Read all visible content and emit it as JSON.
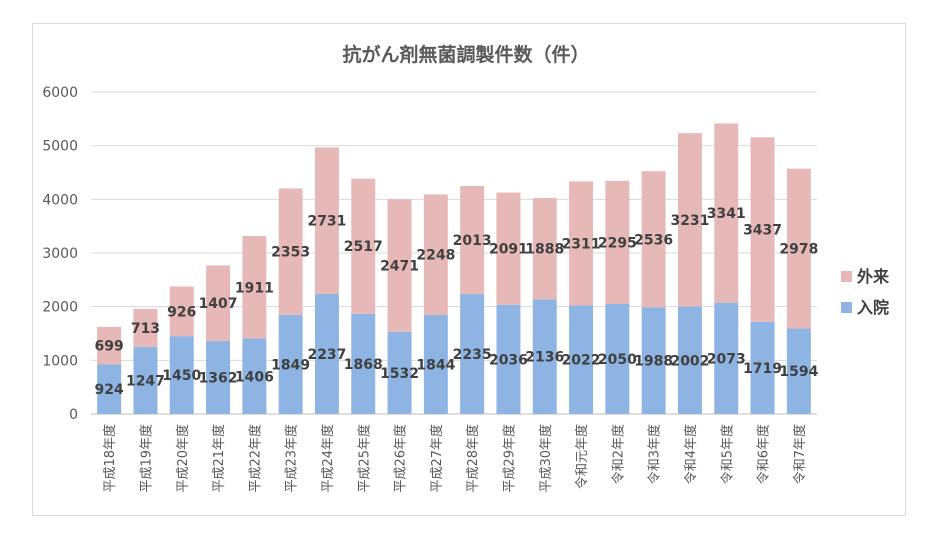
{
  "chart_data": {
    "type": "bar",
    "stacked": true,
    "title": "抗がん剤無菌調製件数（件）",
    "categories": [
      "平成18年度",
      "平成19年度",
      "平成20年度",
      "平成21年度",
      "平成22年度",
      "平成23年度",
      "平成24年度",
      "平成25年度",
      "平成26年度",
      "平成27年度",
      "平成28年度",
      "平成29年度",
      "平成30年度",
      "令和元年度",
      "令和2年度",
      "令和3年度",
      "令和4年度",
      "令和5年度",
      "令和6年度",
      "令和7年度"
    ],
    "series": [
      {
        "name": "入院",
        "color": "#8eb4e3",
        "values": [
          924,
          1247,
          1450,
          1362,
          1406,
          1849,
          2237,
          1868,
          1532,
          1844,
          2235,
          2036,
          2136,
          2022,
          2050,
          1988,
          2002,
          2073,
          1719,
          1594
        ]
      },
      {
        "name": "外来",
        "color": "#e6b9b8",
        "values": [
          699,
          713,
          926,
          1407,
          1911,
          2353,
          2731,
          2517,
          2471,
          2248,
          2013,
          2091,
          1888,
          2311,
          2295,
          2536,
          3231,
          3341,
          3437,
          2978
        ]
      }
    ],
    "ylim": [
      0,
      6000
    ],
    "yticks": [
      0,
      1000,
      2000,
      3000,
      4000,
      5000,
      6000
    ],
    "grid": true,
    "legend_position": "right"
  }
}
